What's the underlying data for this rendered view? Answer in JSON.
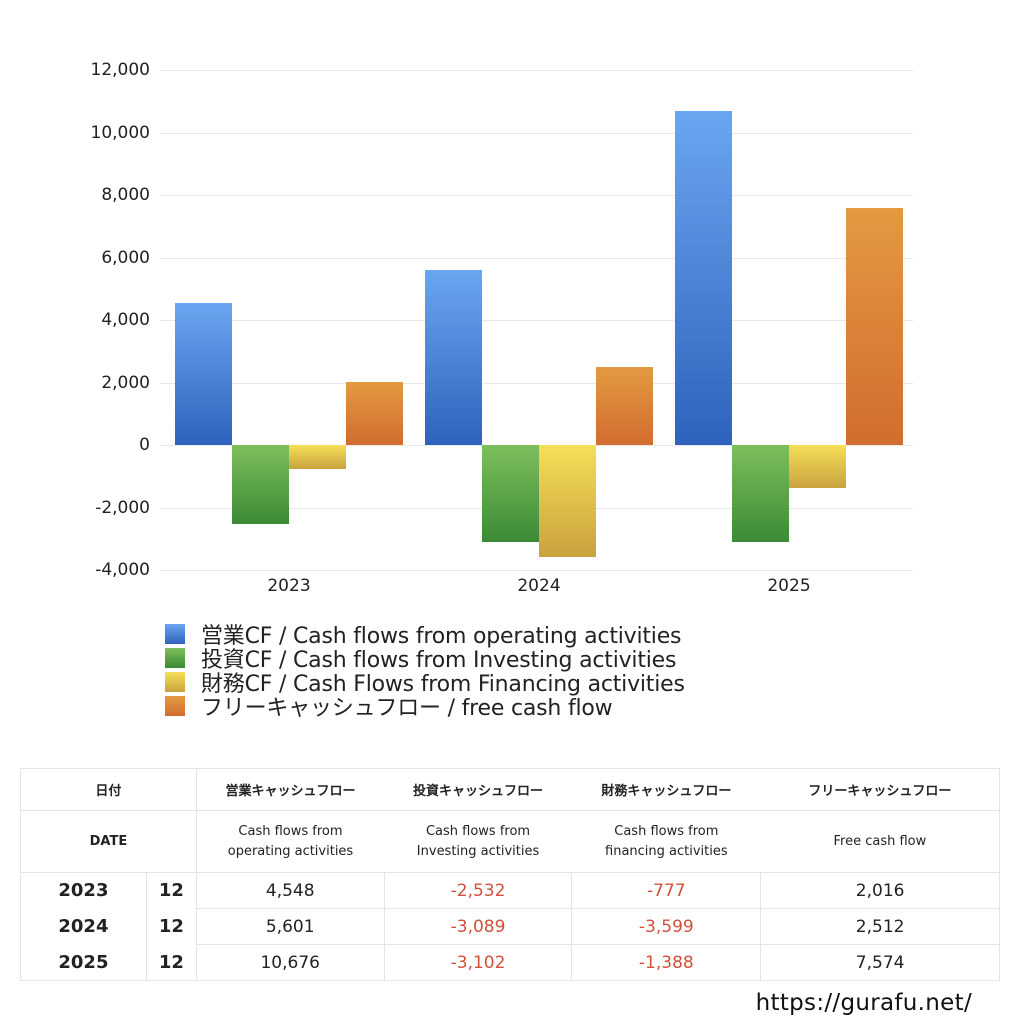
{
  "chart_data": {
    "type": "bar",
    "title": "",
    "xlabel": "",
    "ylabel": "",
    "categories": [
      "2023",
      "2024",
      "2025"
    ],
    "ylim": [
      -4000,
      12000
    ],
    "yticks": [
      "12,000",
      "10,000",
      "8,000",
      "6,000",
      "4,000",
      "2,000",
      "0",
      "-2,000",
      "-4,000"
    ],
    "grid": true,
    "legend_position": "bottom",
    "series": [
      {
        "name": "営業CF / Cash flows from operating activities",
        "color": "#4a86dc",
        "values": [
          4548,
          5601,
          10676
        ]
      },
      {
        "name": "投資CF / Cash flows from Investing activities",
        "color": "#4f9a42",
        "values": [
          -2532,
          -3089,
          -3102
        ]
      },
      {
        "name": "財務CF / Cash Flows from Financing activities",
        "color": "#e2c447",
        "values": [
          -777,
          -3599,
          -1388
        ]
      },
      {
        "name": "フリーキャッシュフロー / free cash flow",
        "color": "#dd7f36",
        "values": [
          2016,
          2512,
          7574
        ]
      }
    ]
  },
  "legend": [
    {
      "label": "営業CF / Cash flows from operating activities"
    },
    {
      "label": "投資CF / Cash flows from Investing activities"
    },
    {
      "label": "財務CF / Cash Flows from Financing activities"
    },
    {
      "label": "フリーキャッシュフロー / free cash flow"
    }
  ],
  "table": {
    "header_jp": {
      "date": "日付",
      "operating": "営業キャッシュフロー",
      "investing": "投資キャッシュフロー",
      "financing": "財務キャッシュフロー",
      "free": "フリーキャッシュフロー"
    },
    "header_en": {
      "date": "DATE",
      "operating_1": "Cash flows from",
      "operating_2": "operating activities",
      "investing_1": "Cash flows from",
      "investing_2": "Investing activities",
      "financing_1": "Cash flows from",
      "financing_2": "financing activities",
      "free": "Free cash flow"
    },
    "rows": [
      {
        "year": "2023",
        "month": "12",
        "operating": "4,548",
        "investing": "-2,532",
        "financing": "-777",
        "free": "2,016"
      },
      {
        "year": "2024",
        "month": "12",
        "operating": "5,601",
        "investing": "-3,089",
        "financing": "-3,599",
        "free": "2,512"
      },
      {
        "year": "2025",
        "month": "12",
        "operating": "10,676",
        "investing": "-3,102",
        "financing": "-1,388",
        "free": "7,574"
      }
    ]
  },
  "footer": {
    "url": "https://gurafu.net/"
  }
}
